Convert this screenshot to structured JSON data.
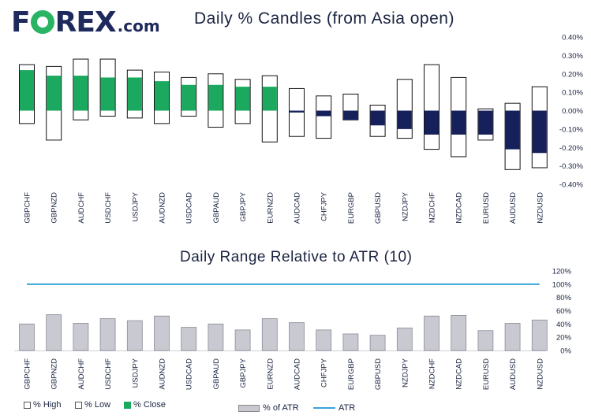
{
  "logo": {
    "part1": "F",
    "part2": "REX",
    "suffix": ".com"
  },
  "colors": {
    "close_up": "#1aa95e",
    "close_down": "#16215c",
    "range_box": "#ffffff",
    "outline": "#111111",
    "atr_bar": "#c8c9d1",
    "atr_line": "#3ca3dc"
  },
  "chart_data": [
    {
      "type": "candle",
      "title": "Daily % Candles (from Asia open)",
      "categories": [
        "GBPCHF",
        "GBPNZD",
        "AUDCHF",
        "USDCHF",
        "USDJPY",
        "AUDNZD",
        "USDCAD",
        "GBPAUD",
        "GBPJPY",
        "EURNZD",
        "AUDCAD",
        "CHFJPY",
        "EURGBP",
        "GBPUSD",
        "NZDJPY",
        "NZDCHF",
        "NZDCAD",
        "EURUSD",
        "AUDUSD",
        "NZDUSD"
      ],
      "high": [
        0.25,
        0.24,
        0.28,
        0.28,
        0.22,
        0.21,
        0.18,
        0.2,
        0.17,
        0.19,
        0.12,
        0.08,
        0.09,
        0.03,
        0.17,
        0.25,
        0.18,
        0.01,
        0.04,
        0.13
      ],
      "low": [
        -0.07,
        -0.16,
        -0.05,
        -0.03,
        -0.04,
        -0.07,
        -0.03,
        -0.09,
        -0.07,
        -0.17,
        -0.14,
        -0.15,
        -0.05,
        -0.14,
        -0.15,
        -0.21,
        -0.25,
        -0.16,
        -0.32,
        -0.31
      ],
      "close": [
        0.22,
        0.19,
        0.19,
        0.18,
        0.18,
        0.16,
        0.14,
        0.14,
        0.13,
        0.13,
        -0.01,
        -0.03,
        -0.05,
        -0.08,
        -0.1,
        -0.13,
        -0.13,
        -0.13,
        -0.21,
        -0.23
      ],
      "ylim": [
        -0.4,
        0.4
      ],
      "y_ticks": [
        "0.40%",
        "0.30%",
        "0.20%",
        "0.10%",
        "0.00%",
        "-0.10%",
        "-0.20%",
        "-0.30%",
        "-0.40%"
      ],
      "legend": [
        "% High",
        "% Low",
        "% Close"
      ]
    },
    {
      "type": "bar",
      "title": "Daily Range Relative to ATR (10)",
      "categories": [
        "GBPCHF",
        "GBPNZD",
        "AUDCHF",
        "USDCHF",
        "USDJPY",
        "AUDNZD",
        "USDCAD",
        "GBPAUD",
        "GBPJPY",
        "EURNZD",
        "AUDCAD",
        "CHFJPY",
        "EURGBP",
        "GBPUSD",
        "NZDJPY",
        "NZDCHF",
        "NZDCAD",
        "EURUSD",
        "AUDUSD",
        "NZDUSD"
      ],
      "values": [
        40,
        54,
        41,
        48,
        45,
        52,
        35,
        40,
        31,
        48,
        42,
        31,
        25,
        23,
        34,
        52,
        53,
        30,
        41,
        46
      ],
      "atr": 100,
      "ylim": [
        0,
        120
      ],
      "y_ticks": [
        "120%",
        "100%",
        "80%",
        "60%",
        "40%",
        "20%",
        "0%"
      ],
      "legend": [
        "% of ATR",
        "ATR"
      ]
    }
  ]
}
